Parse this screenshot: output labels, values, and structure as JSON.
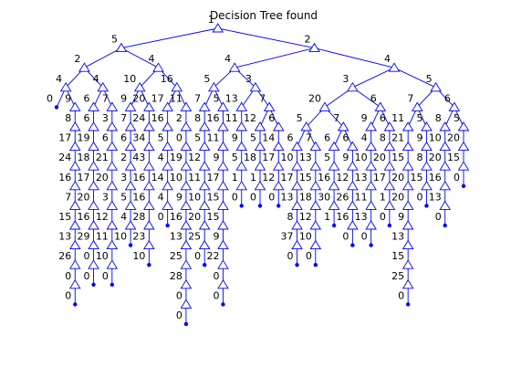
{
  "chart_data": {
    "type": "tree",
    "title": "Decision Tree found",
    "edge_color": "#0000ff",
    "marker_color": "#0000ff",
    "background": "#ffffff",
    "axes_visible": false,
    "tree": [
      "1",
      [
        "5",
        [
          "2",
          [
            "4",
            [
              "0"
            ],
            [
              "9",
              [
                "8",
                [
                  "17",
                  [
                    "24",
                    [
                      "16",
                      [
                        "7",
                        [
                          "15",
                          [
                            "13",
                            [
                              "26",
                              [
                                "0",
                                [
                                  "0"
                                ]
                              ]
                            ]
                          ]
                        ]
                      ]
                    ]
                  ]
                ]
              ]
            ]
          ],
          [
            "4",
            [
              "6",
              [
                "6",
                [
                  "19",
                  [
                    "18",
                    [
                      "17",
                      [
                        "20",
                        [
                          "16",
                          [
                            "29",
                            [
                              "0",
                              [
                                "0"
                              ]
                            ]
                          ]
                        ]
                      ]
                    ]
                  ]
                ]
              ]
            ],
            [
              "7",
              [
                "3",
                [
                  "6",
                  [
                    "21",
                    [
                      "20",
                      [
                        "3",
                        [
                          "12",
                          [
                            "11",
                            [
                              "10",
                              [
                                "0"
                              ]
                            ]
                          ]
                        ]
                      ]
                    ]
                  ]
                ]
              ]
            ]
          ]
        ],
        [
          "4",
          [
            "10",
            [
              "9",
              [
                "7",
                [
                  "6",
                  [
                    "2",
                    [
                      "3",
                      [
                        "5",
                        [
                          "4",
                          [
                            "10"
                          ]
                        ]
                      ]
                    ]
                  ]
                ]
              ]
            ],
            [
              "20",
              [
                "24",
                [
                  "34",
                  [
                    "43",
                    [
                      "16",
                      [
                        "16",
                        [
                          "28",
                          [
                            "23",
                            [
                              "10"
                            ]
                          ]
                        ]
                      ]
                    ]
                  ]
                ]
              ]
            ]
          ],
          [
            "16",
            [
              "17",
              [
                "16",
                [
                  "5",
                  [
                    "4",
                    [
                      "14",
                      [
                        "4",
                        [
                          "0"
                        ]
                      ]
                    ]
                  ]
                ]
              ]
            ],
            [
              "11",
              [
                "2",
                [
                  "0",
                  [
                    "19",
                    [
                      "10",
                      [
                        "9",
                        [
                          "16",
                          [
                            "13",
                            [
                              "25",
                              [
                                "28",
                                [
                                  "0",
                                  [
                                    "0"
                                  ]
                                ]
                              ]
                            ]
                          ]
                        ]
                      ]
                    ]
                  ]
                ]
              ]
            ]
          ]
        ]
      ],
      [
        "2",
        [
          "4",
          [
            "5",
            [
              "7",
              [
                "8",
                [
                  "5",
                  [
                    "12",
                    [
                      "11",
                      [
                        "10",
                        [
                          "20",
                          [
                            "25",
                            [
                              "0"
                            ]
                          ]
                        ]
                      ]
                    ]
                  ]
                ]
              ]
            ],
            [
              "5",
              [
                "16",
                [
                  "11",
                  [
                    "9",
                    [
                      "17",
                      [
                        "15",
                        [
                          "15",
                          [
                            "9",
                            [
                              "22",
                              [
                                "0",
                                [
                                  "0"
                                ]
                              ]
                            ]
                          ]
                        ]
                      ]
                    ]
                  ]
                ]
              ]
            ]
          ],
          [
            "3",
            [
              "13",
              [
                "11",
                [
                  "9",
                  [
                    "5",
                    [
                      "1",
                      [
                        "0"
                      ]
                    ]
                  ]
                ]
              ]
            ],
            [
              "7",
              [
                "12",
                [
                  "5",
                  [
                    "18",
                    [
                      "1",
                      [
                        "0"
                      ]
                    ]
                  ]
                ]
              ],
              [
                "6",
                [
                  "14",
                  [
                    "17",
                    [
                      "12",
                      [
                        "0"
                      ]
                    ]
                  ]
                ]
              ]
            ]
          ]
        ],
        [
          "4",
          [
            "3",
            [
              "20",
              [
                "5",
                [
                  "6",
                  [
                    "10",
                    [
                      "17",
                      [
                        "13",
                        [
                          "8",
                          [
                            "37",
                            [
                              "0"
                            ]
                          ]
                        ]
                      ]
                    ]
                  ]
                ],
                [
                  "7",
                  [
                    "13",
                    [
                      "15",
                      [
                        "18",
                        [
                          "12",
                          [
                            "10",
                            [
                              "0"
                            ]
                          ]
                        ]
                      ]
                    ]
                  ]
                ]
              ],
              [
                "7",
                [
                  "6",
                  [
                    "5",
                    [
                      "16",
                      [
                        "30",
                        [
                          "1"
                        ]
                      ]
                    ]
                  ]
                ],
                [
                  "6",
                  [
                    "9",
                    [
                      "12",
                      [
                        "26",
                        [
                          "16",
                          [
                            "0"
                          ]
                        ]
                      ]
                    ]
                  ]
                ]
              ]
            ],
            [
              "6",
              [
                "9",
                [
                  "4",
                  [
                    "10",
                    [
                      "13",
                      [
                        "11",
                        [
                          "13",
                          [
                            "0"
                          ]
                        ]
                      ]
                    ]
                  ]
                ]
              ],
              [
                "6",
                [
                  "8",
                  [
                    "20",
                    [
                      "17",
                      [
                        "1",
                        [
                          "0"
                        ]
                      ]
                    ]
                  ]
                ]
              ]
            ]
          ],
          [
            "5",
            [
              "7",
              [
                "11",
                [
                  "21",
                  [
                    "15",
                    [
                      "20",
                      [
                        "20",
                        [
                          "9",
                          [
                            "13",
                            [
                              "15",
                              [
                                "25",
                                [
                                  "0"
                                ]
                              ]
                            ]
                          ]
                        ]
                      ]
                    ]
                  ]
                ]
              ],
              [
                "5",
                [
                  "9",
                  [
                    "8",
                    [
                      "15",
                      [
                        "0"
                      ]
                    ]
                  ]
                ]
              ]
            ],
            [
              "6",
              [
                "8",
                [
                  "10",
                  [
                    "20",
                    [
                      "16",
                      [
                        "13",
                        [
                          "0"
                        ]
                      ]
                    ]
                  ]
                ]
              ],
              [
                "5",
                [
                  "20",
                  [
                    "15",
                    [
                      "0"
                    ]
                  ]
                ]
              ]
            ]
          ]
        ]
      ]
    ]
  }
}
